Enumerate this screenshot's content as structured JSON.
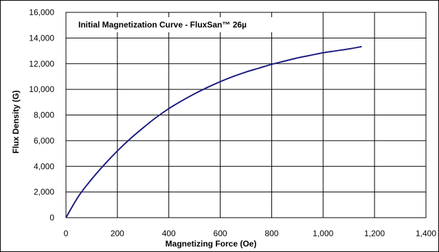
{
  "colors": {
    "series": "#1a1a80",
    "grid": "#000000",
    "background": "#ffffff"
  },
  "chart_data": {
    "type": "line",
    "title": "Initial Magnetization Curve - FluxSan™ 26µ",
    "xlabel": "Magnetizing Force (Oe)",
    "ylabel": "Flux Density (G)",
    "xlim": [
      0,
      1400
    ],
    "ylim": [
      0,
      16000
    ],
    "x_ticks": [
      0,
      200,
      400,
      600,
      800,
      1000,
      1200,
      1400
    ],
    "y_ticks": [
      0,
      2000,
      4000,
      6000,
      8000,
      10000,
      12000,
      14000,
      16000
    ],
    "x_tick_labels": [
      "0",
      "200",
      "400",
      "600",
      "800",
      "1,000",
      "1,200",
      "1,400"
    ],
    "y_tick_labels": [
      "0",
      "2,000",
      "4,000",
      "6,000",
      "8,000",
      "10,000",
      "12,000",
      "14,000",
      "16,000"
    ],
    "grid": true,
    "legend": "none",
    "series": [
      {
        "x": [
          0,
          50,
          100,
          150,
          200,
          250,
          300,
          350,
          400,
          450,
          500,
          550,
          600,
          650,
          700,
          750,
          800,
          850,
          900,
          950,
          1000,
          1050,
          1100,
          1150
        ],
        "y": [
          0,
          1700,
          3000,
          4150,
          5200,
          6150,
          7000,
          7800,
          8500,
          9100,
          9650,
          10150,
          10600,
          11000,
          11350,
          11650,
          11950,
          12200,
          12450,
          12650,
          12850,
          13000,
          13150,
          13330
        ]
      }
    ]
  }
}
